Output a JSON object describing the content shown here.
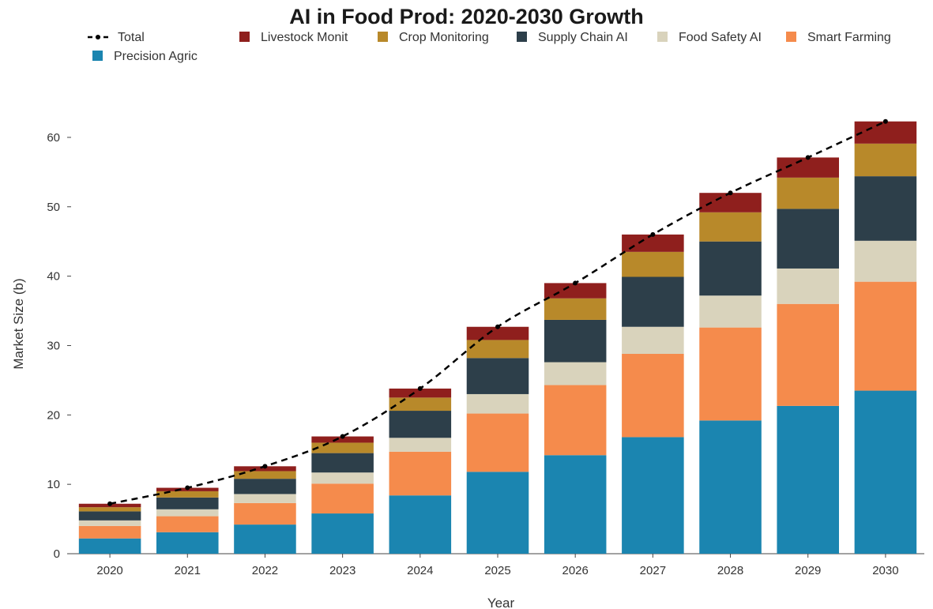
{
  "chart_data": {
    "type": "bar",
    "stacked": true,
    "title": "AI in Food Prod: 2020-2030 Growth",
    "xlabel": "Year",
    "ylabel": "Market Size (b)",
    "ylim": [
      0,
      65
    ],
    "yticks": [
      0,
      10,
      20,
      30,
      40,
      50,
      60
    ],
    "categories": [
      "2020",
      "2021",
      "2022",
      "2023",
      "2024",
      "2025",
      "2026",
      "2027",
      "2028",
      "2029",
      "2030"
    ],
    "series": [
      {
        "name": "Precision Agric",
        "color": "#1b85b0",
        "values": [
          2.2,
          3.1,
          4.2,
          5.8,
          8.4,
          11.8,
          14.2,
          16.8,
          19.2,
          21.3,
          23.5
        ]
      },
      {
        "name": "Smart Farming",
        "color": "#f58b4c",
        "values": [
          1.8,
          2.3,
          3.1,
          4.3,
          6.3,
          8.4,
          10.1,
          12.0,
          13.4,
          14.7,
          15.7
        ]
      },
      {
        "name": "Food Safety AI",
        "color": "#d9d3bc",
        "values": [
          0.8,
          1.0,
          1.3,
          1.6,
          2.0,
          2.8,
          3.3,
          3.9,
          4.6,
          5.1,
          5.9
        ]
      },
      {
        "name": "Supply Chain AI",
        "color": "#2d3f4a",
        "values": [
          1.3,
          1.7,
          2.2,
          2.8,
          3.9,
          5.2,
          6.1,
          7.2,
          7.8,
          8.6,
          9.3
        ]
      },
      {
        "name": "Crop Monitoring",
        "color": "#b8892a",
        "values": [
          0.6,
          0.9,
          1.1,
          1.5,
          1.9,
          2.6,
          3.1,
          3.6,
          4.2,
          4.5,
          4.7
        ]
      },
      {
        "name": "Livestock Monit",
        "color": "#8f1f1d",
        "values": [
          0.5,
          0.5,
          0.7,
          0.9,
          1.3,
          1.9,
          2.2,
          2.5,
          2.8,
          2.9,
          3.2
        ]
      }
    ],
    "total": {
      "name": "Total",
      "style": "dashed",
      "color": "#000000",
      "values": [
        7.2,
        9.5,
        12.6,
        16.9,
        23.8,
        32.7,
        39.0,
        46.0,
        52.0,
        57.1,
        62.3
      ]
    },
    "legend": {
      "placement": "top",
      "order": [
        "Total",
        "Livestock Monit",
        "Crop Monitoring",
        "Supply Chain AI",
        "Food Safety AI",
        "Smart Farming",
        "Precision Agric"
      ]
    },
    "grid": false
  }
}
